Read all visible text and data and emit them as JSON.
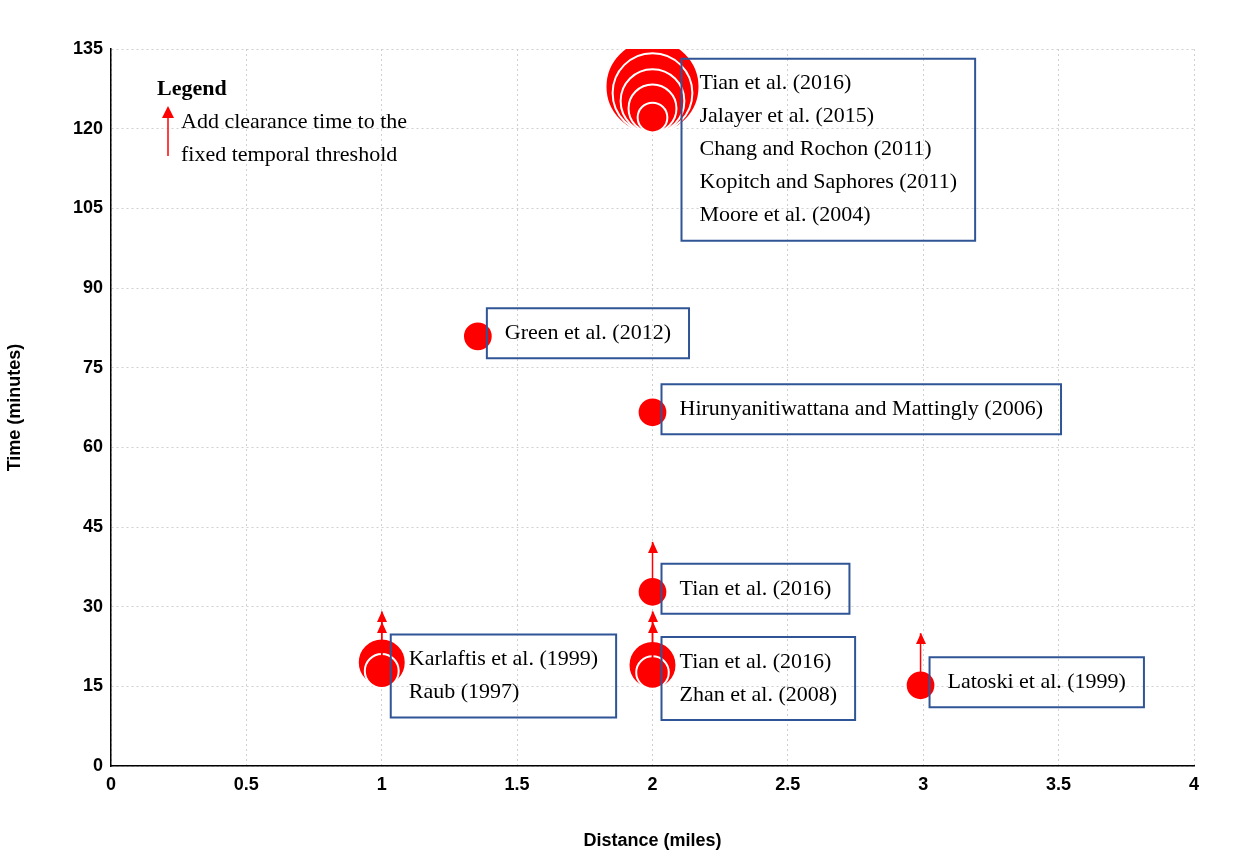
{
  "chart_data": {
    "type": "bubble",
    "xlabel": "Distance (miles)",
    "ylabel": "Time (minutes)",
    "legend_title": "Legend",
    "grid": true,
    "xlim": [
      0,
      4
    ],
    "xticks": [
      0,
      0.5,
      1,
      1.5,
      2,
      2.5,
      3,
      3.5,
      4
    ],
    "ylim": [
      0,
      135
    ],
    "yticks": [
      0,
      15,
      30,
      45,
      60,
      75,
      90,
      105,
      120,
      135
    ],
    "series": [
      {
        "color": "#ff0000",
        "x": [
          2,
          2,
          2,
          2,
          2,
          1.355,
          2,
          2,
          1,
          1,
          2,
          2,
          2.99
        ],
        "values": [
          127.9,
          126.7,
          125.2,
          123.8,
          122.1,
          80.9,
          66.6,
          32.8,
          19.5,
          17.9,
          19.0,
          17.6,
          15.2
        ],
        "sizes": [
          1,
          0.72,
          0.46,
          0.26,
          0.1,
          0.1,
          0.1,
          0.1,
          0.26,
          0.13,
          0.26,
          0.12,
          0.1
        ],
        "errors": [
          null,
          null,
          null,
          null,
          null,
          null,
          null,
          [
            32.8,
            42.2
          ],
          [
            19.5,
            29.1
          ],
          [
            17.9,
            27.1
          ],
          [
            19.0,
            29.1
          ],
          [
            17.6,
            27.1
          ],
          [
            15.2,
            25.0
          ]
        ]
      }
    ],
    "annotations": [
      "Add clearance time to the fixed temporal threshold",
      {
        "text": "Tian et al. (2016)\nJalayer et al. (2015)\nChang and Rochon (2011)\nKopitch and Saphores (2011)\nMoore et al. (2004)",
        "x": 2,
        "y": 127.9
      },
      {
        "text": "Green et al. (2012)",
        "x": 1.355,
        "y": 80.9
      },
      {
        "text": "Hirunyanitiwattana and Mattingly (2006)",
        "x": 2,
        "y": 66.6
      },
      {
        "text": "Tian et al. (2016)",
        "x": 2,
        "y": 32.8
      },
      {
        "text": "Karlaftis et al. (1999)",
        "x": 1,
        "y": 19.5
      },
      {
        "text": "Raub (1997)",
        "x": 1,
        "y": 19.5
      },
      {
        "text": "Tian et al. (2016)",
        "x": 2,
        "y": 19.0
      },
      {
        "text": "Zhan et al. (2008)",
        "x": 2,
        "y": 19.0
      },
      {
        "text": "Latoski et al. (1999)",
        "x": 2.99,
        "y": 15.2
      }
    ]
  }
}
